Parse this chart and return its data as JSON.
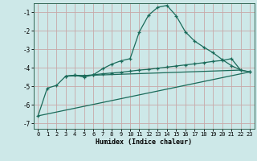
{
  "xlabel": "Humidex (Indice chaleur)",
  "background_color": "#cde8e8",
  "grid_color": "#b8d8d8",
  "line_color": "#1a6b5a",
  "xlim": [
    -0.5,
    23.5
  ],
  "ylim": [
    -7.3,
    -0.5
  ],
  "yticks": [
    -7,
    -6,
    -5,
    -4,
    -3,
    -2,
    -1
  ],
  "xticks": [
    0,
    1,
    2,
    3,
    4,
    5,
    6,
    7,
    8,
    9,
    10,
    11,
    12,
    13,
    14,
    15,
    16,
    17,
    18,
    19,
    20,
    21,
    22,
    23
  ],
  "series1_x": [
    0,
    1,
    2,
    3,
    4,
    5,
    6,
    7,
    8,
    9,
    10,
    11,
    12,
    13,
    14,
    15,
    16,
    17,
    18,
    19,
    20,
    21,
    22,
    23
  ],
  "series1_y": [
    -6.6,
    -5.1,
    -4.95,
    -4.45,
    -4.4,
    -4.5,
    -4.38,
    -4.05,
    -3.8,
    -3.62,
    -3.5,
    -2.05,
    -1.15,
    -0.72,
    -0.62,
    -1.18,
    -2.05,
    -2.55,
    -2.88,
    -3.18,
    -3.55,
    -3.88,
    -4.12,
    -4.22
  ],
  "series2_x": [
    3,
    4,
    5,
    6,
    7,
    8,
    9,
    10,
    11,
    12,
    13,
    14,
    15,
    16,
    17,
    18,
    19,
    20,
    21,
    22,
    23
  ],
  "series2_y": [
    -4.45,
    -4.4,
    -4.42,
    -4.38,
    -4.32,
    -4.28,
    -4.24,
    -4.18,
    -4.12,
    -4.08,
    -4.02,
    -3.96,
    -3.9,
    -3.84,
    -3.78,
    -3.72,
    -3.65,
    -3.6,
    -3.5,
    -4.12,
    -4.22
  ],
  "series3_x": [
    0,
    23
  ],
  "series3_y": [
    -6.6,
    -4.22
  ],
  "series4_x": [
    3,
    22
  ],
  "series4_y": [
    -4.45,
    -4.12
  ]
}
